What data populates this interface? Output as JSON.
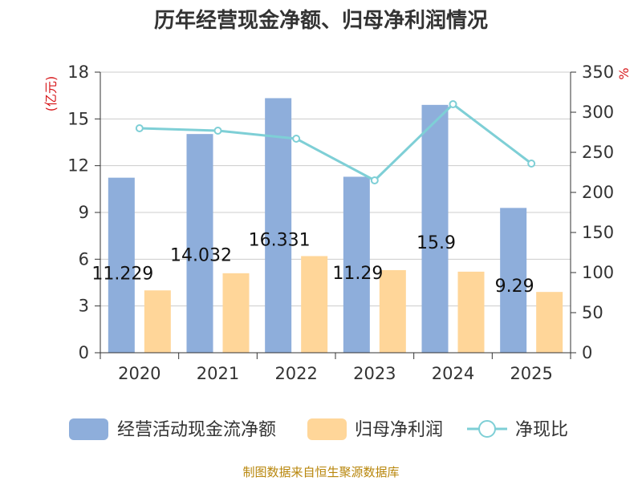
{
  "title": "历年经营现金净额、归母净利润情况",
  "source": "制图数据来自恒生聚源数据库",
  "colors": {
    "op_cash": "#8eaedb",
    "net_profit": "#ffd699",
    "ratio": "#7ecfd6",
    "grid": "#cccccc",
    "axis": "#333333",
    "unit": "#d7191c",
    "source": "#b8860b"
  },
  "chart_data": {
    "type": "bar",
    "title": "历年经营现金净额、归母净利润情况",
    "categories": [
      "2020",
      "2021",
      "2022",
      "2023",
      "2024",
      "2025"
    ],
    "y_left": {
      "unit_label": "(亿元)",
      "min": 0,
      "max": 18,
      "ticks": [
        0,
        3,
        6,
        9,
        12,
        15,
        18
      ]
    },
    "y_right": {
      "unit_label": "%",
      "min": 0,
      "max": 350,
      "ticks": [
        0,
        50,
        100,
        150,
        200,
        250,
        300,
        350
      ]
    },
    "grid": true,
    "legend_position": "bottom",
    "series": [
      {
        "name": "经营活动现金流净额",
        "type": "bar",
        "axis": "left",
        "values": [
          11.229,
          14.032,
          16.331,
          11.29,
          15.9,
          9.29
        ],
        "data_labels": [
          "11.229",
          "14.032",
          "16.331",
          "11.29",
          "15.9",
          "9.29"
        ]
      },
      {
        "name": "归母净利润",
        "type": "bar",
        "axis": "left",
        "values": [
          4.0,
          5.1,
          6.2,
          5.3,
          5.2,
          3.9
        ]
      },
      {
        "name": "净现比",
        "type": "line",
        "axis": "right",
        "values": [
          280,
          277,
          267,
          215,
          310,
          236
        ]
      }
    ]
  }
}
